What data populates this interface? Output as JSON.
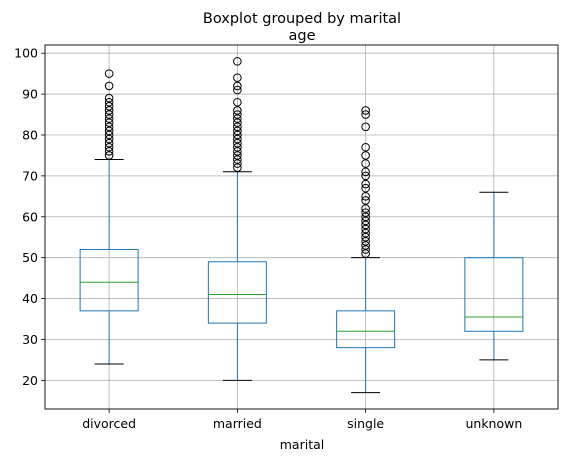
{
  "chart_data": {
    "type": "boxplot",
    "suptitle": "Boxplot grouped by marital",
    "title": "age",
    "xlabel": "marital",
    "ylabel": "",
    "ylim": [
      13,
      102
    ],
    "yticks": [
      20,
      30,
      40,
      50,
      60,
      70,
      80,
      90,
      100
    ],
    "grid": true,
    "categories": [
      "divorced",
      "married",
      "single",
      "unknown"
    ],
    "boxes": [
      {
        "category": "divorced",
        "whisker_low": 24,
        "q1": 37,
        "median": 44,
        "q3": 52,
        "whisker_high": 74,
        "outliers": [
          75,
          76,
          77,
          78,
          79,
          80,
          81,
          82,
          83,
          84,
          85,
          86,
          87,
          88,
          89,
          92,
          95
        ]
      },
      {
        "category": "married",
        "whisker_low": 20,
        "q1": 34,
        "median": 41,
        "q3": 49,
        "whisker_high": 71,
        "outliers": [
          72,
          73,
          74,
          75,
          76,
          77,
          78,
          79,
          80,
          81,
          82,
          83,
          84,
          85,
          86,
          88,
          91,
          92,
          94,
          98
        ]
      },
      {
        "category": "single",
        "whisker_low": 17,
        "q1": 28,
        "median": 32,
        "q3": 37,
        "whisker_high": 50,
        "outliers": [
          51,
          52,
          53,
          54,
          55,
          56,
          57,
          58,
          59,
          60,
          61,
          62,
          64,
          65,
          67,
          68,
          70,
          71,
          73,
          75,
          77,
          82,
          85,
          86
        ]
      },
      {
        "category": "unknown",
        "whisker_low": 25,
        "q1": 32,
        "median": 35.5,
        "q3": 50,
        "whisker_high": 66,
        "outliers": []
      }
    ],
    "colors": {
      "box": "#1f77b4",
      "median": "#2ca02c",
      "whisker_cap": "#000000",
      "grid": "#b0b0b0",
      "outlier_edge": "#000000"
    }
  }
}
